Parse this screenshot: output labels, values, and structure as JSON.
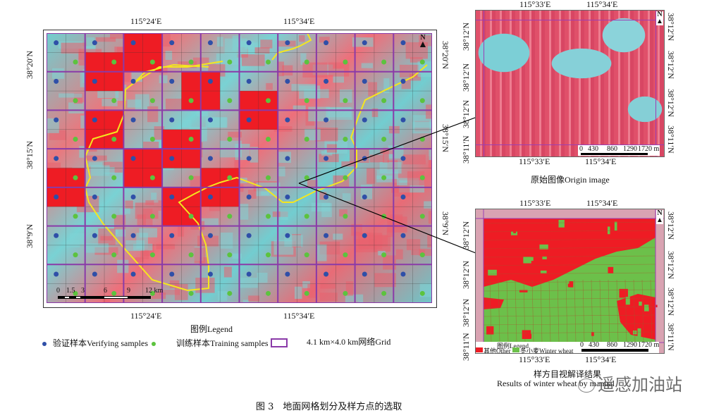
{
  "figure": {
    "caption": "图 3　地面网格划分及样方点的选取"
  },
  "main_map": {
    "top_ticks": [
      "115°24′E",
      "115°34′E"
    ],
    "bottom_ticks": [
      "115°24′E",
      "115°34′E"
    ],
    "left_ticks": [
      "38°20′N",
      "38°15′N",
      "38°9′N"
    ],
    "right_ticks": [
      "38°20′N",
      "38°15′N",
      "38°9′N"
    ],
    "north_label": "N",
    "scale_labels": [
      "0",
      "1.5",
      "3",
      "6",
      "9",
      "12 km"
    ],
    "grid_cols": 10,
    "grid_rows": 7,
    "selected_cells": [
      [
        4,
        0
      ],
      [
        2,
        1
      ],
      [
        7,
        2
      ],
      [
        10,
        3
      ],
      [
        2,
        4
      ],
      [
        6,
        5
      ],
      [
        4,
        6
      ],
      [
        0,
        7
      ],
      [
        8,
        7
      ],
      [
        6,
        8
      ]
    ],
    "colors": {
      "selected_cell": "#ee1c24",
      "grid": "#8a3aa8",
      "boundary": "#f5e61e",
      "verifying_dot": "#2f4fa8",
      "training_dot": "#5cc33e"
    }
  },
  "legend": {
    "title": "图例Legend",
    "items": [
      {
        "label": "验证样本Verifying samples",
        "symbol": "blue-dot"
      },
      {
        "label": "训练样本Training samples",
        "symbol": "green-dot"
      },
      {
        "label": "4.1 km×4.0 km网络Grid",
        "symbol": "purple-rect"
      }
    ]
  },
  "inset_origin": {
    "top_ticks": [
      "115°33′E",
      "115°34′E"
    ],
    "bottom_ticks": [
      "115°33′E",
      "115°34′E"
    ],
    "left_ticks": [
      "38°12′N",
      "38°12′N",
      "38°12′N",
      "38°11′N"
    ],
    "right_ticks": [
      "38°12′N",
      "38°12′N",
      "38°12′N",
      "38°11′N"
    ],
    "north_label": "N",
    "scale_labels": [
      "0",
      "430",
      "860",
      "1290",
      "1720 m"
    ],
    "caption": "原始图像Origin image"
  },
  "inset_result": {
    "top_ticks": [
      "115°33′E",
      "115°34′E"
    ],
    "bottom_ticks": [
      "115°33′E",
      "115°34′E"
    ],
    "left_ticks": [
      "38°12′N",
      "38°12′N",
      "38°12′N",
      "38°11′N"
    ],
    "right_ticks": [
      "38°12′N",
      "38°12′N",
      "38°12′N",
      "38°11′N"
    ],
    "north_label": "N",
    "scale_labels": [
      "0",
      "430",
      "860",
      "1290",
      "1720 m"
    ],
    "legend_title": "图例Legend",
    "legend_items": [
      {
        "label": "其他Other",
        "color": "#ee1c24"
      },
      {
        "label": "冬小麦Winter wheat",
        "color": "#6cc04a"
      }
    ],
    "caption_cn": "样方目视解译结果",
    "caption_en": "Results of winter wheat by manual"
  },
  "watermark": {
    "text": "遥感加油站"
  }
}
